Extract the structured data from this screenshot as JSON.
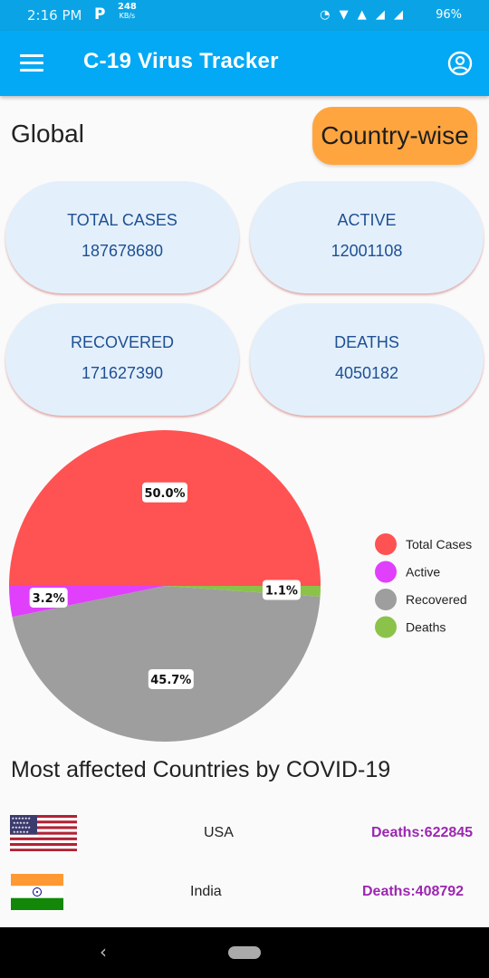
{
  "status_bar": {
    "time": "2:16 PM",
    "network_speed": "248",
    "network_unit": "KB/s",
    "battery": "96%"
  },
  "app_bar": {
    "title": "C-19 Virus Tracker"
  },
  "tabs": {
    "global_label": "Global",
    "country_wise_label": "Country-wise"
  },
  "stats": {
    "total_cases": {
      "label": "TOTAL CASES",
      "value": "187678680"
    },
    "active": {
      "label": "ACTIVE",
      "value": "12001108"
    },
    "recovered": {
      "label": "RECOVERED",
      "value": "171627390"
    },
    "deaths": {
      "label": "DEATHS",
      "value": "4050182"
    }
  },
  "chart_data": {
    "type": "pie",
    "slices": [
      {
        "name": "Total Cases",
        "value": 50.0,
        "label": "50.0%",
        "color": "#ff5252"
      },
      {
        "name": "Active",
        "value": 3.2,
        "label": "3.2%",
        "color": "#e040fb"
      },
      {
        "name": "Recovered",
        "value": 45.7,
        "label": "45.7%",
        "color": "#9e9e9e"
      },
      {
        "name": "Deaths",
        "value": 1.1,
        "label": "1.1%",
        "color": "#8bc34a"
      }
    ],
    "legend_position": "right"
  },
  "most_affected": {
    "title": "Most affected Countries by COVID-19",
    "countries": [
      {
        "name": "USA",
        "deaths": "Deaths:622845",
        "flag": "usa-flag"
      },
      {
        "name": "India",
        "deaths": "Deaths:408792",
        "flag": "india-flag"
      }
    ]
  },
  "colors": {
    "app_bar": "#03a9f4",
    "accent_button": "#ffa53f",
    "card_bg": "#e3f0fb",
    "card_text": "#1f4f93",
    "deaths_text": "#9c27b0"
  }
}
